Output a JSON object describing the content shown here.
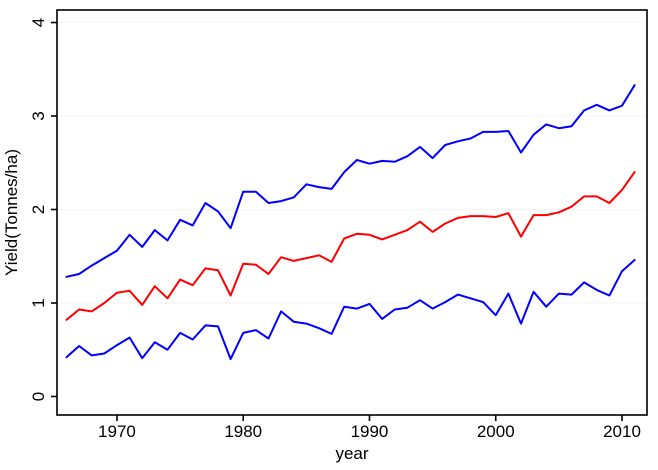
{
  "chart_data": {
    "type": "line",
    "xlabel": "year",
    "ylabel": "Yield(Tonnes/ha)",
    "xticks": [
      1970,
      1980,
      1990,
      2000,
      2010
    ],
    "yticks": [
      0,
      1,
      2,
      3,
      4
    ],
    "xlim": [
      1965.25,
      2011.98
    ],
    "ylim": [
      -0.198,
      4.134
    ],
    "grid": "faint dotted horizontal at y=1,2,3,4",
    "legend": "none",
    "x": [
      1966,
      1967,
      1968,
      1969,
      1970,
      1971,
      1972,
      1973,
      1974,
      1975,
      1976,
      1977,
      1978,
      1979,
      1980,
      1981,
      1982,
      1983,
      1984,
      1985,
      1986,
      1987,
      1988,
      1989,
      1990,
      1991,
      1992,
      1993,
      1994,
      1995,
      1996,
      1997,
      1998,
      1999,
      2000,
      2001,
      2002,
      2003,
      2004,
      2005,
      2006,
      2007,
      2008,
      2009,
      2010,
      2011
    ],
    "series": [
      {
        "name": "top-blue-line",
        "color": "#0000ff",
        "values": [
          1.28,
          1.31,
          1.4,
          1.48,
          1.56,
          1.73,
          1.6,
          1.78,
          1.67,
          1.89,
          1.83,
          2.07,
          1.98,
          1.8,
          2.19,
          2.19,
          2.07,
          2.09,
          2.13,
          2.27,
          2.24,
          2.22,
          2.4,
          2.53,
          2.49,
          2.52,
          2.51,
          2.57,
          2.67,
          2.55,
          2.69,
          2.73,
          2.76,
          2.83,
          2.83,
          2.84,
          2.61,
          2.8,
          2.91,
          2.87,
          2.89,
          3.06,
          3.12,
          3.06,
          3.11,
          3.33
        ]
      },
      {
        "name": "middle-red-line",
        "color": "#ff0000",
        "values": [
          0.82,
          0.93,
          0.91,
          1.0,
          1.11,
          1.13,
          0.98,
          1.18,
          1.05,
          1.25,
          1.19,
          1.37,
          1.35,
          1.08,
          1.42,
          1.41,
          1.31,
          1.49,
          1.45,
          1.48,
          1.51,
          1.44,
          1.69,
          1.74,
          1.73,
          1.68,
          1.73,
          1.78,
          1.87,
          1.76,
          1.85,
          1.91,
          1.93,
          1.93,
          1.92,
          1.96,
          1.71,
          1.94,
          1.94,
          1.97,
          2.03,
          2.14,
          2.14,
          2.07,
          2.21,
          2.4
        ]
      },
      {
        "name": "bottom-blue-line",
        "color": "#0000ff",
        "values": [
          0.42,
          0.54,
          0.44,
          0.46,
          0.55,
          0.63,
          0.41,
          0.58,
          0.5,
          0.68,
          0.61,
          0.76,
          0.75,
          0.4,
          0.68,
          0.71,
          0.62,
          0.91,
          0.8,
          0.78,
          0.73,
          0.67,
          0.96,
          0.94,
          0.99,
          0.83,
          0.93,
          0.95,
          1.03,
          0.94,
          1.01,
          1.09,
          1.05,
          1.01,
          0.87,
          1.1,
          0.78,
          1.12,
          0.96,
          1.1,
          1.09,
          1.22,
          1.14,
          1.08,
          1.34,
          1.46
        ]
      }
    ]
  },
  "colors": {
    "background": "#ffffff",
    "axis": "#000000",
    "gridline": "#e6e6e6",
    "line_blue": "#0000ff",
    "line_red": "#ff0000"
  }
}
